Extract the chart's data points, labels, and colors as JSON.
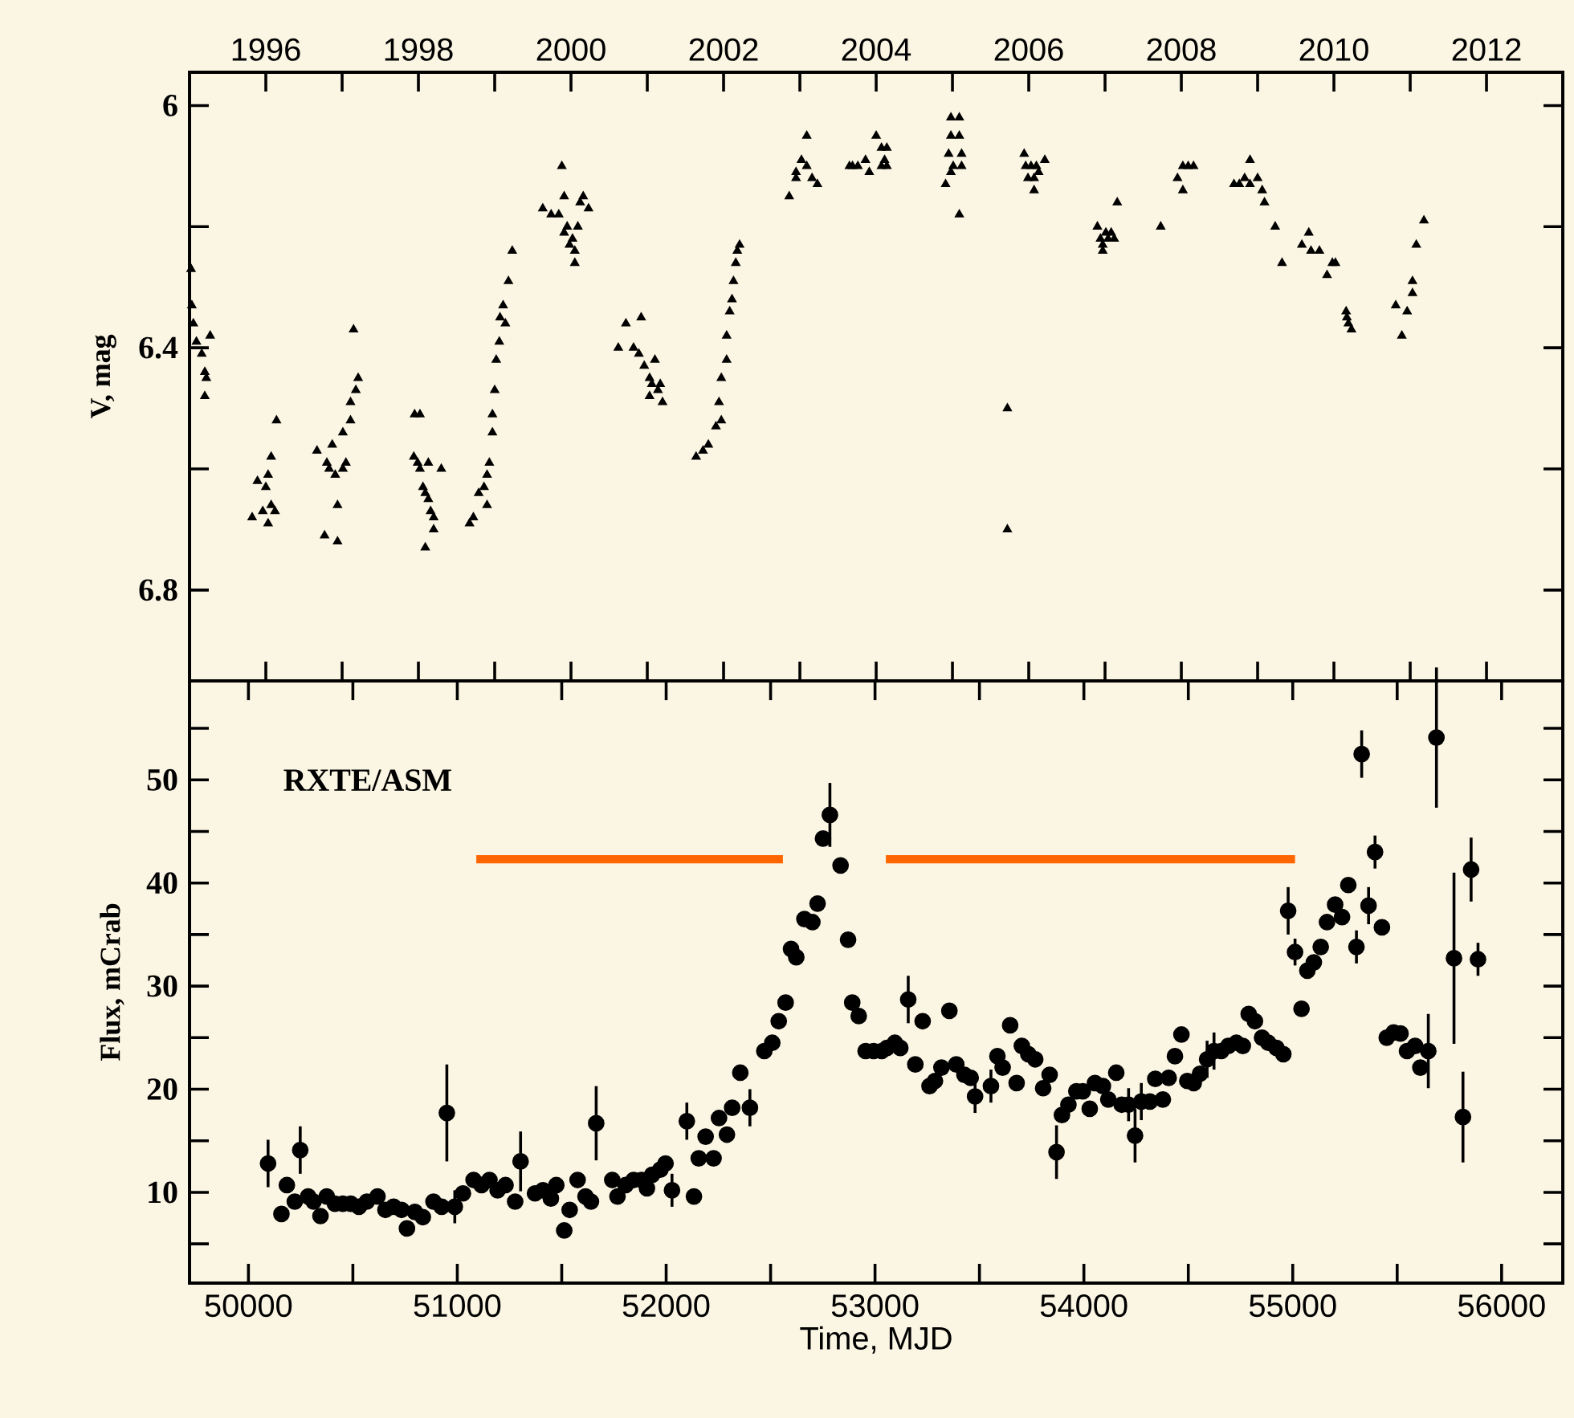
{
  "chart_data": [
    {
      "type": "scatter",
      "ylabel": "V, mag",
      "xlim": [
        1995,
        2013
      ],
      "xticks": [
        1996,
        {
          "value": 1997,
          "label": null
        },
        1998,
        {
          "value": 1999,
          "label": null
        },
        2000,
        {
          "value": 2001,
          "label": null
        },
        2002,
        {
          "value": 2003,
          "label": null
        },
        2004,
        {
          "value": 2005,
          "label": null
        },
        2006,
        {
          "value": 2007,
          "label": null
        },
        2008,
        {
          "value": 2009,
          "label": null
        },
        2010,
        {
          "value": 2011,
          "label": null
        },
        2012
      ],
      "ylim": [
        6.95,
        5.945
      ],
      "yticks": [
        6,
        {
          "value": 6.2,
          "label": null
        },
        6.4,
        {
          "value": 6.6,
          "label": null
        },
        6.8
      ],
      "marker": "triangle",
      "series": [
        {
          "color": "#000000",
          "x": [
            1995.02,
            1995.03,
            1995.05,
            1995.09,
            1995.16,
            1995.2,
            1995.22,
            1995.2,
            1995.27,
            1995.82,
            1995.89,
            1995.96,
            1996.0,
            1996.03,
            1996.03,
            1996.07,
            1996.07,
            1996.12,
            1996.14,
            1996.67,
            1996.77,
            1996.8,
            1996.83,
            1996.87,
            1996.91,
            1996.94,
            1996.94,
            1997.01,
            1997.05,
            1997.01,
            1997.11,
            1997.11,
            1997.15,
            1997.18,
            1997.21,
            1997.95,
            1998.02,
            1997.94,
            1997.99,
            1998.02,
            1998.06,
            1998.09,
            1998.13,
            1998.16,
            1998.2,
            1998.09,
            1998.2,
            1998.3,
            1998.13,
            1998.67,
            1998.72,
            1998.79,
            1998.86,
            1998.9,
            1998.9,
            1998.93,
            1998.97,
            1998.97,
            1999.0,
            1999.02,
            1999.06,
            1999.07,
            1999.11,
            1999.14,
            1999.18,
            1999.23,
            1999.88,
            1999.63,
            1999.74,
            1999.84,
            1999.91,
            1999.95,
            2000.02,
            2000.05,
            2000.05,
            2000.12,
            2000.16,
            2000.23,
            1999.98,
            1999.91,
            2000.09,
            2000.62,
            2000.72,
            2000.92,
            2000.82,
            2000.89,
            2000.96,
            2001.03,
            2001.1,
            2001.06,
            2001.14,
            2001.17,
            2001.2,
            2001.03,
            2001.64,
            2001.73,
            2001.8,
            2001.9,
            2001.97,
            2001.94,
            2001.97,
            2002.04,
            2002.04,
            2002.08,
            2002.11,
            2002.13,
            2002.16,
            2002.18,
            2002.21,
            2002.86,
            2002.95,
            2003.02,
            2003.09,
            2003.09,
            2003.16,
            2003.23,
            2002.95,
            2003.69,
            2003.76,
            2003.65,
            2003.86,
            2003.91,
            2004.0,
            2004.07,
            2004.11,
            2004.14,
            2004.07,
            2004.14,
            2004.91,
            2004.98,
            2005.09,
            2004.98,
            2005.09,
            2004.95,
            2005.12,
            2005.01,
            2005.12,
            2005.09,
            2004.98,
            2005.72,
            2005.72,
            2005.94,
            2005.96,
            2006.03,
            2006.07,
            2006.1,
            2006.13,
            2006.21,
            2006.07,
            2005.99,
            2006.9,
            2006.94,
            2006.97,
            2007.01,
            2007.04,
            2007.08,
            2007.12,
            2007.16,
            2006.97,
            2007.73,
            2007.95,
            2008.02,
            2008.09,
            2008.16,
            2008.02,
            2008.69,
            2008.76,
            2008.83,
            2008.9,
            2008.9,
            2009.0,
            2009.06,
            2009.09,
            2009.23,
            2009.32,
            2009.58,
            2009.67,
            2009.7,
            2009.81,
            2009.91,
            2009.98,
            2010.02,
            2010.16,
            2010.17,
            2010.19,
            2010.23,
            2010.81,
            2010.89,
            2010.96,
            2011.03,
            2011.03,
            2011.08,
            2011.18
          ],
          "values": [
            6.27,
            6.33,
            6.36,
            6.39,
            6.41,
            6.44,
            6.45,
            6.48,
            6.38,
            6.68,
            6.62,
            6.67,
            6.63,
            6.61,
            6.69,
            6.58,
            6.66,
            6.67,
            6.52,
            6.57,
            6.71,
            6.59,
            6.6,
            6.56,
            6.61,
            6.72,
            6.66,
            6.6,
            6.59,
            6.54,
            6.52,
            6.49,
            6.37,
            6.47,
            6.45,
            6.51,
            6.51,
            6.58,
            6.59,
            6.6,
            6.63,
            6.64,
            6.65,
            6.67,
            6.7,
            6.73,
            6.68,
            6.6,
            6.59,
            6.69,
            6.68,
            6.64,
            6.63,
            6.66,
            6.61,
            6.59,
            6.54,
            6.51,
            6.47,
            6.42,
            6.39,
            6.35,
            6.33,
            6.36,
            6.29,
            6.24,
            6.1,
            6.17,
            6.18,
            6.18,
            6.15,
            6.2,
            6.22,
            6.24,
            6.26,
            6.16,
            6.15,
            6.17,
            6.23,
            6.21,
            6.2,
            6.4,
            6.36,
            6.35,
            6.4,
            6.41,
            6.43,
            6.45,
            6.42,
            6.46,
            6.47,
            6.46,
            6.49,
            6.48,
            6.58,
            6.57,
            6.56,
            6.53,
            6.52,
            6.49,
            6.45,
            6.42,
            6.38,
            6.34,
            6.32,
            6.29,
            6.26,
            6.24,
            6.23,
            6.15,
            6.11,
            6.09,
            6.05,
            6.1,
            6.12,
            6.13,
            6.12,
            6.1,
            6.1,
            6.1,
            6.09,
            6.11,
            6.05,
            6.07,
            6.09,
            6.07,
            6.1,
            6.1,
            6.13,
            6.02,
            6.02,
            6.05,
            6.05,
            6.08,
            6.08,
            6.1,
            6.1,
            6.18,
            6.11,
            6.5,
            6.7,
            6.08,
            6.1,
            6.1,
            6.12,
            6.1,
            6.11,
            6.09,
            6.14,
            6.12,
            6.2,
            6.22,
            6.23,
            6.21,
            6.22,
            6.21,
            6.22,
            6.16,
            6.24,
            6.2,
            6.12,
            6.1,
            6.1,
            6.1,
            6.14,
            6.13,
            6.13,
            6.12,
            6.09,
            6.13,
            6.12,
            6.14,
            6.16,
            6.2,
            6.26,
            6.23,
            6.21,
            6.24,
            6.24,
            6.28,
            6.26,
            6.26,
            6.34,
            6.35,
            6.36,
            6.37,
            6.33,
            6.38,
            6.34,
            6.29,
            6.31,
            6.23,
            6.19
          ]
        }
      ]
    },
    {
      "type": "scatter",
      "xlabel": "Time, MJD",
      "ylabel": "Flux, mCrab",
      "annotations": [
        "RXTE/ASM"
      ],
      "xlim": [
        49718,
        56293
      ],
      "xticks": [
        50000,
        {
          "value": 50500,
          "label": null
        },
        51000,
        {
          "value": 51500,
          "label": null
        },
        52000,
        {
          "value": 52500,
          "label": null
        },
        53000,
        {
          "value": 53500,
          "label": null
        },
        54000,
        {
          "value": 54500,
          "label": null
        },
        55000,
        {
          "value": 55500,
          "label": null
        },
        56000
      ],
      "ylim": [
        1.2,
        59.6
      ],
      "yticks": [
        {
          "value": 5,
          "label": null
        },
        10,
        {
          "value": 15,
          "label": null
        },
        20,
        {
          "value": 25,
          "label": null
        },
        30,
        {
          "value": 35,
          "label": null
        },
        40,
        {
          "value": 45,
          "label": null
        },
        50,
        {
          "value": 55,
          "label": null
        }
      ],
      "marker": "circle",
      "series": [
        {
          "color": "#000000",
          "x": [
            50094,
            50158,
            50184,
            50222,
            50248,
            50286,
            50312,
            50345,
            50375,
            50414,
            50452,
            50490,
            50529,
            50567,
            50618,
            50656,
            50695,
            50733,
            50759,
            50797,
            50835,
            50886,
            50925,
            50950,
            50988,
            51027,
            51078,
            51116,
            51154,
            51193,
            51231,
            51277,
            51303,
            51372,
            51410,
            51448,
            51474,
            51512,
            51538,
            51576,
            51614,
            51640,
            51665,
            51742,
            51767,
            51806,
            51844,
            51882,
            51908,
            51933,
            51972,
            51997,
            52028,
            52099,
            52133,
            52156,
            52189,
            52227,
            52253,
            52291,
            52316,
            52355,
            52401,
            52470,
            52508,
            52539,
            52572,
            52598,
            52623,
            52662,
            52700,
            52725,
            52751,
            52784,
            52835,
            52871,
            52891,
            52922,
            52955,
            52993,
            53032,
            53057,
            53095,
            53121,
            53159,
            53193,
            53228,
            53261,
            53287,
            53318,
            53356,
            53389,
            53428,
            53458,
            53479,
            53555,
            53586,
            53611,
            53647,
            53678,
            53703,
            53734,
            53767,
            53805,
            53836,
            53869,
            53895,
            53926,
            53964,
            53995,
            54028,
            54053,
            54091,
            54117,
            54155,
            54181,
            54214,
            54245,
            54275,
            54316,
            54342,
            54378,
            54406,
            54436,
            54467,
            54495,
            54526,
            54556,
            54590,
            54623,
            54658,
            54692,
            54730,
            54761,
            54789,
            54819,
            54853,
            54883,
            54922,
            54955,
            54978,
            55011,
            55042,
            55070,
            55101,
            55134,
            55164,
            55203,
            55236,
            55266,
            55305,
            55330,
            55363,
            55394,
            55427,
            55450,
            55483,
            55516,
            55547,
            55586,
            55611,
            55649,
            55688,
            55772,
            55815,
            55854,
            55887
          ],
          "values": [
            12.8,
            7.9,
            10.7,
            9.1,
            14.1,
            9.6,
            9.1,
            7.7,
            9.6,
            8.9,
            8.9,
            8.9,
            8.6,
            9.1,
            9.6,
            8.3,
            8.6,
            8.3,
            6.5,
            8.1,
            7.6,
            9.1,
            8.6,
            17.7,
            8.6,
            9.9,
            11.2,
            10.7,
            11.2,
            10.2,
            10.7,
            9.1,
            13,
            9.9,
            10.2,
            9.4,
            10.7,
            6.3,
            8.3,
            11.2,
            9.6,
            9.1,
            16.7,
            11.2,
            9.6,
            10.7,
            11.2,
            11.2,
            10.4,
            11.7,
            12.2,
            12.8,
            10.2,
            16.9,
            9.6,
            13.3,
            15.4,
            13.3,
            17.2,
            15.6,
            18.2,
            21.6,
            18.2,
            23.7,
            24.5,
            26.6,
            28.4,
            33.6,
            32.8,
            36.5,
            36.2,
            38,
            44.3,
            46.6,
            41.7,
            34.5,
            28.4,
            27.1,
            23.7,
            23.7,
            23.7,
            24,
            24.5,
            24,
            28.7,
            22.4,
            26.6,
            20.3,
            20.8,
            22.1,
            27.6,
            22.4,
            21.4,
            21.1,
            19.3,
            20.3,
            23.2,
            22.1,
            26.2,
            20.6,
            24.2,
            23.4,
            22.9,
            20.1,
            21.4,
            13.9,
            17.5,
            18.5,
            19.8,
            19.8,
            18.1,
            20.6,
            20.3,
            19,
            21.6,
            18.5,
            18.5,
            15.5,
            18.8,
            18.8,
            21,
            19,
            21.1,
            23.2,
            25.3,
            20.8,
            20.6,
            21.5,
            22.9,
            23.7,
            23.7,
            24.2,
            24.5,
            24.2,
            27.3,
            26.6,
            25,
            24.5,
            24,
            23.4,
            37.3,
            33.3,
            27.8,
            31.5,
            32.3,
            33.8,
            36.2,
            37.9,
            36.7,
            39.8,
            33.8,
            52.5,
            37.8,
            43,
            35.7,
            25,
            25.5,
            25.4,
            23.7,
            24.2,
            22.1,
            23.7,
            54.1,
            32.7,
            17.3,
            41.3,
            32.6
          ],
          "errors": [
            2.3,
            null,
            null,
            null,
            2.3,
            null,
            null,
            null,
            null,
            null,
            null,
            null,
            null,
            null,
            null,
            null,
            null,
            null,
            null,
            null,
            null,
            null,
            null,
            4.7,
            1.6,
            null,
            null,
            null,
            null,
            null,
            null,
            null,
            2.9,
            null,
            null,
            null,
            null,
            null,
            null,
            null,
            null,
            null,
            3.6,
            null,
            null,
            null,
            null,
            null,
            null,
            null,
            null,
            null,
            1.6,
            1.8,
            null,
            null,
            null,
            null,
            null,
            null,
            null,
            null,
            1.8,
            null,
            null,
            null,
            null,
            null,
            null,
            null,
            null,
            null,
            null,
            3.1,
            null,
            null,
            null,
            null,
            null,
            null,
            null,
            null,
            null,
            null,
            2.3,
            null,
            null,
            null,
            null,
            null,
            null,
            null,
            null,
            null,
            1.6,
            1.6,
            null,
            null,
            null,
            null,
            null,
            null,
            null,
            null,
            null,
            2.6,
            null,
            null,
            null,
            null,
            null,
            null,
            null,
            null,
            null,
            null,
            1.6,
            2.6,
            1.8,
            null,
            null,
            null,
            null,
            null,
            null,
            null,
            null,
            null,
            1.8,
            1.8,
            null,
            null,
            null,
            null,
            null,
            null,
            null,
            null,
            null,
            null,
            2.3,
            1.3,
            null,
            null,
            null,
            null,
            null,
            null,
            null,
            null,
            1.6,
            2.3,
            1.8,
            1.6,
            null,
            null,
            null,
            null,
            null,
            null,
            null,
            3.6,
            6.8,
            8.3,
            4.4,
            3.1,
            1.6
          ]
        },
        {
          "type": "line",
          "color": "#ff6600",
          "marker": "none",
          "x": [
            51091,
            52559,
            52800,
            53052,
            55011
          ],
          "values": [
            42.3,
            42.3,
            null,
            42.3,
            42.3
          ]
        }
      ]
    }
  ]
}
